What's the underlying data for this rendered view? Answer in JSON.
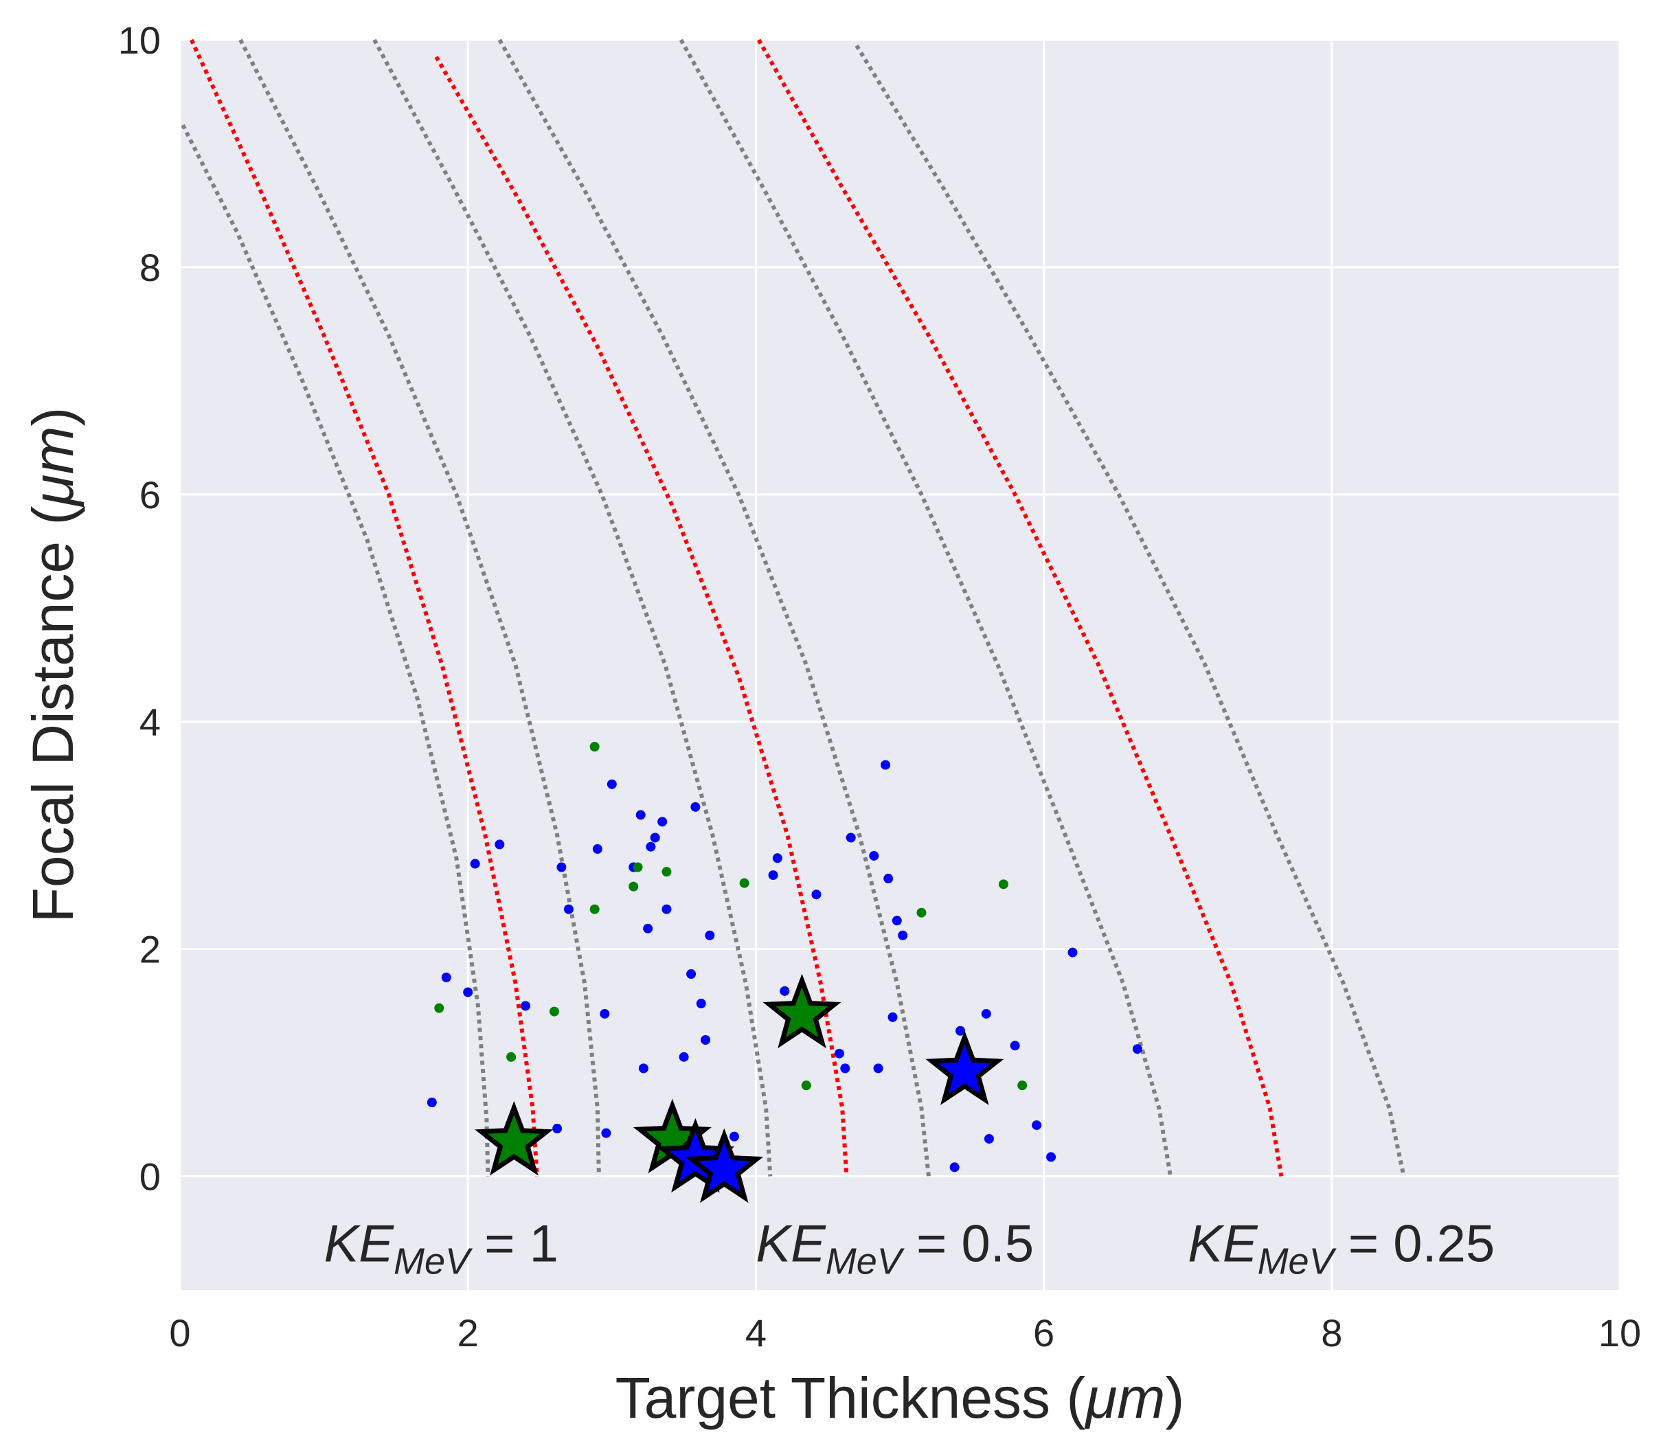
{
  "chart_data": {
    "type": "scatter",
    "style": {
      "background": "#eaeaf2",
      "grid_color": "#ffffff",
      "grid": true,
      "legend": "none"
    },
    "xlabel": "Target Thickness (μm)",
    "xlabel_parts": {
      "main": "Target Thickness (",
      "unit": "μm",
      "close": ")"
    },
    "ylabel": "Focal Distance (μm)",
    "ylabel_parts": {
      "main": "Focal Distance (",
      "unit": "μm",
      "close": ")"
    },
    "xlim": [
      0,
      10
    ],
    "ylim": [
      -1,
      10
    ],
    "x_ticks": [
      0,
      2,
      4,
      6,
      8,
      10
    ],
    "x_tick_labels": [
      "0",
      "2",
      "4",
      "6",
      "8",
      "10"
    ],
    "y_ticks": [
      0,
      2,
      4,
      6,
      8,
      10
    ],
    "y_tick_labels": [
      "0",
      "2",
      "4",
      "6",
      "8",
      "10"
    ],
    "annotations": [
      {
        "label": "KE",
        "subscript": "MeV",
        "text": " = 1",
        "x": 1.0,
        "y": -0.75
      },
      {
        "label": "KE",
        "subscript": "MeV",
        "text": " = 0.5",
        "x": 4.0,
        "y": -0.75
      },
      {
        "label": "KE",
        "subscript": "MeV",
        "text": " = 0.25",
        "x": 7.0,
        "y": -0.75
      }
    ],
    "curves": [
      {
        "color": "#808080",
        "style": "dotted",
        "points": [
          [
            0.02,
            9.25
          ],
          [
            0.4,
            8.3
          ],
          [
            0.85,
            7.0
          ],
          [
            1.3,
            5.6
          ],
          [
            1.65,
            4.2
          ],
          [
            1.92,
            2.8
          ],
          [
            2.07,
            1.5
          ],
          [
            2.13,
            0.5
          ],
          [
            2.14,
            0.0
          ]
        ]
      },
      {
        "color": "#ff0000",
        "style": "dotted",
        "points": [
          [
            0.08,
            10.0
          ],
          [
            0.55,
            8.7
          ],
          [
            1.0,
            7.4
          ],
          [
            1.45,
            6.0
          ],
          [
            1.82,
            4.5
          ],
          [
            2.12,
            3.0
          ],
          [
            2.33,
            1.7
          ],
          [
            2.45,
            0.6
          ],
          [
            2.48,
            0.0
          ]
        ]
      },
      {
        "color": "#808080",
        "style": "dotted",
        "points": [
          [
            0.42,
            10.0
          ],
          [
            0.95,
            8.7
          ],
          [
            1.45,
            7.4
          ],
          [
            1.92,
            6.0
          ],
          [
            2.33,
            4.5
          ],
          [
            2.62,
            3.0
          ],
          [
            2.81,
            1.7
          ],
          [
            2.9,
            0.6
          ],
          [
            2.91,
            0.0
          ]
        ]
      },
      {
        "color": "#808080",
        "style": "dotted",
        "points": [
          [
            1.35,
            10.0
          ],
          [
            1.9,
            8.7
          ],
          [
            2.43,
            7.4
          ],
          [
            2.93,
            6.0
          ],
          [
            3.37,
            4.5
          ],
          [
            3.7,
            3.0
          ],
          [
            3.93,
            1.7
          ],
          [
            4.07,
            0.6
          ],
          [
            4.1,
            0.0
          ]
        ]
      },
      {
        "color": "#ff0000",
        "style": "dotted",
        "points": [
          [
            1.78,
            9.85
          ],
          [
            2.35,
            8.6
          ],
          [
            2.9,
            7.3
          ],
          [
            3.42,
            5.9
          ],
          [
            3.88,
            4.4
          ],
          [
            4.22,
            3.0
          ],
          [
            4.45,
            1.7
          ],
          [
            4.6,
            0.6
          ],
          [
            4.63,
            0.0
          ]
        ]
      },
      {
        "color": "#808080",
        "style": "dotted",
        "points": [
          [
            2.22,
            10.0
          ],
          [
            2.8,
            8.7
          ],
          [
            3.35,
            7.4
          ],
          [
            3.88,
            6.0
          ],
          [
            4.35,
            4.5
          ],
          [
            4.72,
            3.0
          ],
          [
            4.98,
            1.7
          ],
          [
            5.15,
            0.6
          ],
          [
            5.2,
            0.0
          ]
        ]
      },
      {
        "color": "#808080",
        "style": "dotted",
        "points": [
          [
            3.48,
            10.0
          ],
          [
            4.05,
            8.7
          ],
          [
            4.6,
            7.4
          ],
          [
            5.15,
            6.0
          ],
          [
            5.68,
            4.5
          ],
          [
            6.15,
            3.0
          ],
          [
            6.55,
            1.7
          ],
          [
            6.8,
            0.6
          ],
          [
            6.88,
            0.0
          ]
        ]
      },
      {
        "color": "#ff0000",
        "style": "dotted",
        "points": [
          [
            4.02,
            10.0
          ],
          [
            4.6,
            8.7
          ],
          [
            5.2,
            7.4
          ],
          [
            5.8,
            6.0
          ],
          [
            6.38,
            4.5
          ],
          [
            6.88,
            3.0
          ],
          [
            7.3,
            1.7
          ],
          [
            7.57,
            0.6
          ],
          [
            7.65,
            0.0
          ]
        ]
      },
      {
        "color": "#808080",
        "style": "dotted",
        "points": [
          [
            4.7,
            9.95
          ],
          [
            5.3,
            8.7
          ],
          [
            5.9,
            7.4
          ],
          [
            6.52,
            6.0
          ],
          [
            7.12,
            4.5
          ],
          [
            7.62,
            3.0
          ],
          [
            8.08,
            1.7
          ],
          [
            8.4,
            0.6
          ],
          [
            8.5,
            0.0
          ]
        ]
      }
    ],
    "series": [
      {
        "color": "#0000ff",
        "marker": "dot",
        "points": [
          [
            1.75,
            0.65
          ],
          [
            1.85,
            1.75
          ],
          [
            2.0,
            1.62
          ],
          [
            2.05,
            2.75
          ],
          [
            2.22,
            2.92
          ],
          [
            2.4,
            1.5
          ],
          [
            2.62,
            0.42
          ],
          [
            2.65,
            2.72
          ],
          [
            2.7,
            2.35
          ],
          [
            2.9,
            2.88
          ],
          [
            2.95,
            1.43
          ],
          [
            2.96,
            0.38
          ],
          [
            3.0,
            3.45
          ],
          [
            3.15,
            2.72
          ],
          [
            3.2,
            3.18
          ],
          [
            3.22,
            0.95
          ],
          [
            3.25,
            2.18
          ],
          [
            3.27,
            2.9
          ],
          [
            3.3,
            2.98
          ],
          [
            3.35,
            3.12
          ],
          [
            3.38,
            2.35
          ],
          [
            3.5,
            1.05
          ],
          [
            3.55,
            1.78
          ],
          [
            3.58,
            3.25
          ],
          [
            3.62,
            1.52
          ],
          [
            3.65,
            1.2
          ],
          [
            3.68,
            2.12
          ],
          [
            3.85,
            0.35
          ],
          [
            4.12,
            2.65
          ],
          [
            4.15,
            2.8
          ],
          [
            4.2,
            1.63
          ],
          [
            4.42,
            2.48
          ],
          [
            4.58,
            1.08
          ],
          [
            4.62,
            0.95
          ],
          [
            4.66,
            2.98
          ],
          [
            4.82,
            2.82
          ],
          [
            4.85,
            0.95
          ],
          [
            4.9,
            3.62
          ],
          [
            4.92,
            2.62
          ],
          [
            4.95,
            1.4
          ],
          [
            4.98,
            2.25
          ],
          [
            5.02,
            2.12
          ],
          [
            5.38,
            0.08
          ],
          [
            5.42,
            1.28
          ],
          [
            5.6,
            1.43
          ],
          [
            5.62,
            0.33
          ],
          [
            5.8,
            1.15
          ],
          [
            5.95,
            0.45
          ],
          [
            6.05,
            0.17
          ],
          [
            6.2,
            1.97
          ],
          [
            6.65,
            1.12
          ]
        ]
      },
      {
        "color": "#008000",
        "marker": "dot",
        "points": [
          [
            1.8,
            1.48
          ],
          [
            2.3,
            1.05
          ],
          [
            2.6,
            1.45
          ],
          [
            2.88,
            2.35
          ],
          [
            2.88,
            3.78
          ],
          [
            3.15,
            2.55
          ],
          [
            3.18,
            2.72
          ],
          [
            3.38,
            2.68
          ],
          [
            3.92,
            2.58
          ],
          [
            4.35,
            0.8
          ],
          [
            5.15,
            2.32
          ],
          [
            5.72,
            2.57
          ],
          [
            5.85,
            0.8
          ]
        ]
      },
      {
        "color": "#008000",
        "marker": "star",
        "points": [
          [
            2.32,
            0.3
          ],
          [
            3.42,
            0.32
          ],
          [
            4.32,
            1.42
          ]
        ]
      },
      {
        "color": "#0000ff",
        "marker": "star",
        "points": [
          [
            3.58,
            0.15
          ],
          [
            3.78,
            0.06
          ],
          [
            5.45,
            0.92
          ]
        ]
      }
    ]
  }
}
